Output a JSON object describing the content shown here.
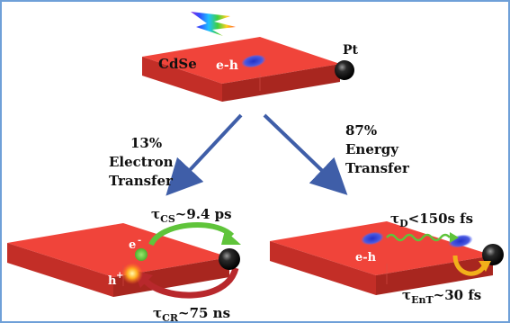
{
  "top": {
    "material_label": "CdSe",
    "exciton_label": "e-h",
    "metal_label": "Pt"
  },
  "pathways": {
    "electron": {
      "percent": "13%",
      "line1": "Electron",
      "line2": "Transfer"
    },
    "energy": {
      "percent": "87%",
      "line1": "Energy",
      "line2": "Transfer"
    }
  },
  "bottom_left": {
    "electron_label": "e",
    "electron_sup": "-",
    "hole_label": "h",
    "hole_sup": "+",
    "tau_cs_symbol": "τ",
    "tau_cs_sub": "CS",
    "tau_cs_value": "~9.4 ps",
    "tau_cr_symbol": "τ",
    "tau_cr_sub": "CR",
    "tau_cr_value": "~75 ns"
  },
  "bottom_right": {
    "exciton_label": "e-h",
    "tau_d_symbol": "τ",
    "tau_d_sub": "D",
    "tau_d_value": "<150s fs",
    "tau_ent_symbol": "τ",
    "tau_ent_sub": "EnT",
    "tau_ent_value": "~30 fs"
  },
  "colors": {
    "slab_top": "#f0443a",
    "slab_side": "#c32e27",
    "slab_end": "#a8261f",
    "arrow_blue": "#3f5ea8",
    "exciton_blue": "#3a4fd8",
    "electron_green": "#5fc43a",
    "hole_orange": "#ffb020",
    "recomb_red": "#b8282c",
    "energy_yellow": "#f2b01a",
    "metal": "#111111",
    "frame": "#6fa0d8"
  }
}
